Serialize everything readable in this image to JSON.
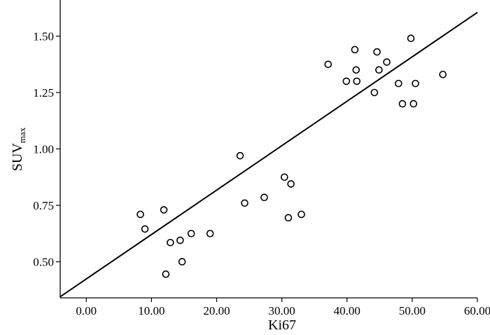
{
  "chart_data": {
    "type": "scatter",
    "xlabel": "Ki67",
    "ylabel_main": "SUV",
    "ylabel_sub": "max",
    "xlim": [
      -4,
      60
    ],
    "ylim": [
      0.34,
      1.66
    ],
    "xticks": [
      0,
      10,
      20,
      30,
      40,
      50,
      60
    ],
    "xtick_labels": [
      "0.00",
      "10.00",
      "20.00",
      "30.00",
      "40.00",
      "50.00",
      "60.00"
    ],
    "yticks": [
      0.5,
      0.75,
      1.0,
      1.25,
      1.5
    ],
    "ytick_labels": [
      "0.50",
      "0.75",
      "1.00",
      "1.25",
      "1.50"
    ],
    "grid": false,
    "points": [
      {
        "x": 8.3,
        "y": 0.71
      },
      {
        "x": 9.0,
        "y": 0.645
      },
      {
        "x": 11.9,
        "y": 0.73
      },
      {
        "x": 12.2,
        "y": 0.445
      },
      {
        "x": 12.9,
        "y": 0.585
      },
      {
        "x": 14.4,
        "y": 0.595
      },
      {
        "x": 14.7,
        "y": 0.5
      },
      {
        "x": 16.1,
        "y": 0.625
      },
      {
        "x": 19.0,
        "y": 0.625
      },
      {
        "x": 23.6,
        "y": 0.97
      },
      {
        "x": 24.3,
        "y": 0.76
      },
      {
        "x": 27.3,
        "y": 0.785
      },
      {
        "x": 30.4,
        "y": 0.875
      },
      {
        "x": 31.0,
        "y": 0.695
      },
      {
        "x": 31.4,
        "y": 0.845
      },
      {
        "x": 33.0,
        "y": 0.71
      },
      {
        "x": 37.1,
        "y": 1.375
      },
      {
        "x": 39.9,
        "y": 1.3
      },
      {
        "x": 41.2,
        "y": 1.44
      },
      {
        "x": 41.4,
        "y": 1.35
      },
      {
        "x": 41.5,
        "y": 1.3
      },
      {
        "x": 44.2,
        "y": 1.25
      },
      {
        "x": 44.6,
        "y": 1.43
      },
      {
        "x": 44.9,
        "y": 1.35
      },
      {
        "x": 46.1,
        "y": 1.385
      },
      {
        "x": 47.9,
        "y": 1.29
      },
      {
        "x": 48.5,
        "y": 1.2
      },
      {
        "x": 49.8,
        "y": 1.49
      },
      {
        "x": 50.2,
        "y": 1.2
      },
      {
        "x": 50.5,
        "y": 1.29
      },
      {
        "x": 54.7,
        "y": 1.33
      }
    ],
    "fit_line": {
      "x": [
        -4,
        60
      ],
      "y": [
        0.345,
        1.605
      ]
    }
  }
}
